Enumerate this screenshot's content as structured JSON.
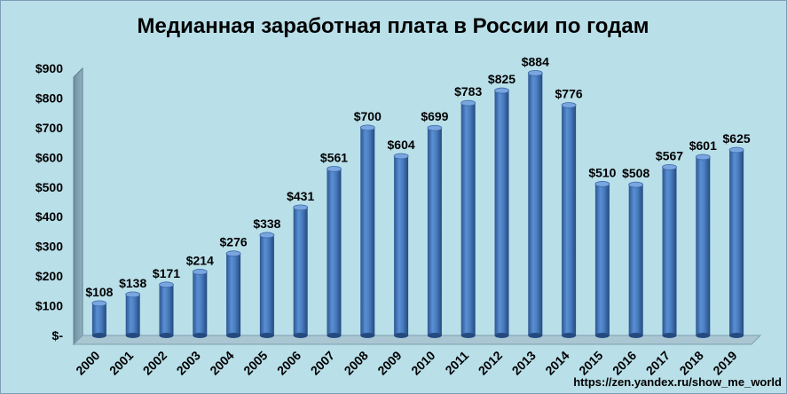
{
  "chart_data": {
    "type": "bar",
    "title": "Медианная заработная плата в России по годам",
    "categories": [
      "2000",
      "2001",
      "2002",
      "2003",
      "2004",
      "2005",
      "2006",
      "2007",
      "2008",
      "2009",
      "2010",
      "2011",
      "2012",
      "2013",
      "2014",
      "2015",
      "2016",
      "2017",
      "2018",
      "2019"
    ],
    "values": [
      108,
      138,
      171,
      214,
      276,
      338,
      431,
      561,
      700,
      604,
      699,
      783,
      825,
      884,
      776,
      510,
      508,
      567,
      601,
      625
    ],
    "data_labels": [
      "$108",
      "$138",
      "$171",
      "$214",
      "$276",
      "$338",
      "$431",
      "$561",
      "$700",
      "$604",
      "$699",
      "$783",
      "$825",
      "$884",
      "$776",
      "$510",
      "$508",
      "$567",
      "$601",
      "$625"
    ],
    "y_tick_values": [
      0,
      100,
      200,
      300,
      400,
      500,
      600,
      700,
      800,
      900
    ],
    "y_tick_labels": [
      "$-",
      "$100",
      "$200",
      "$300",
      "$400",
      "$500",
      "$600",
      "$700",
      "$800",
      "$900"
    ],
    "ylim": [
      0,
      900
    ],
    "xlabel": "",
    "ylabel": "",
    "grid": false,
    "legend": "none",
    "bar_color": "#4a7ec1",
    "background_color": "#b9dfe9",
    "source_text": "https://zen.yandex.ru/show_me_world"
  }
}
